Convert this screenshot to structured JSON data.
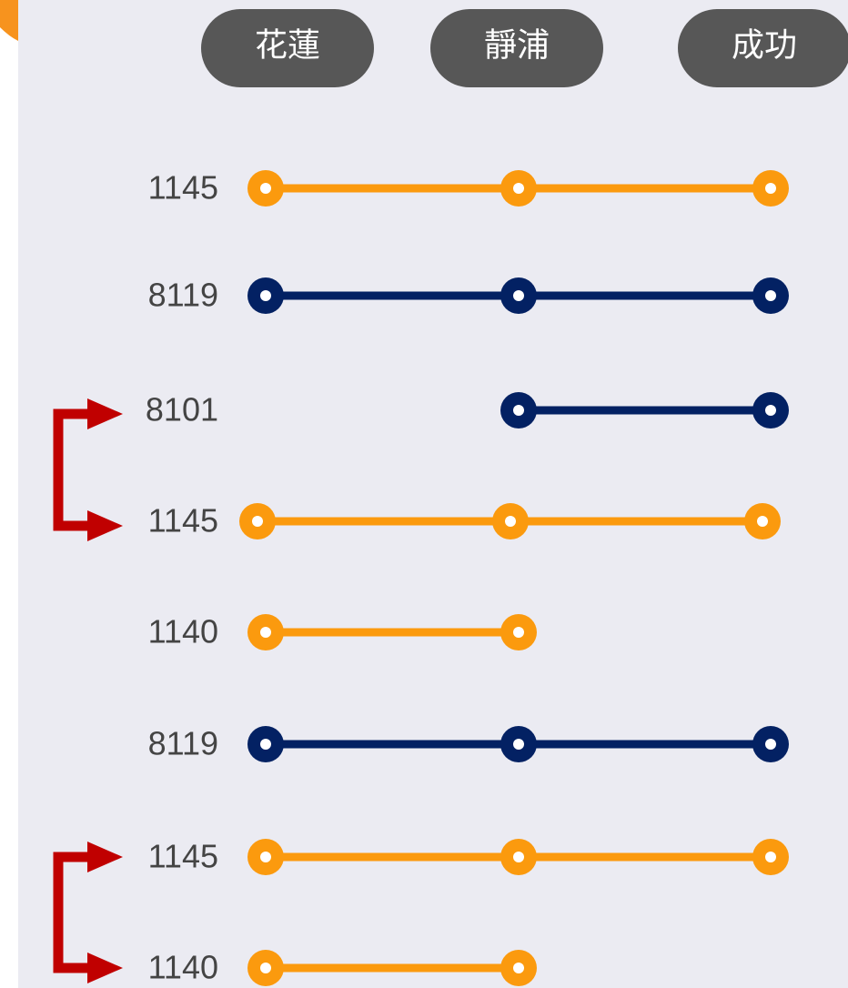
{
  "stations": [
    "花蓮",
    "靜浦",
    "成功"
  ],
  "routes": [
    {
      "label": "1145",
      "color": "#fb9a0e",
      "stops": [
        0,
        1,
        2
      ]
    },
    {
      "label": "8119",
      "color": "#032163",
      "stops": [
        0,
        1,
        2
      ]
    },
    {
      "label": "8101",
      "color": "#032163",
      "stops": [
        1,
        2
      ]
    },
    {
      "label": "1145",
      "color": "#fb9a0e",
      "stops": [
        0,
        1,
        2
      ]
    },
    {
      "label": "1140",
      "color": "#fb9a0e",
      "stops": [
        0,
        1
      ]
    },
    {
      "label": "8119",
      "color": "#032163",
      "stops": [
        0,
        1,
        2
      ]
    },
    {
      "label": "1145",
      "color": "#fb9a0e",
      "stops": [
        0,
        1,
        2
      ]
    },
    {
      "label": "1140",
      "color": "#fb9a0e",
      "stops": [
        0,
        1
      ]
    }
  ]
}
